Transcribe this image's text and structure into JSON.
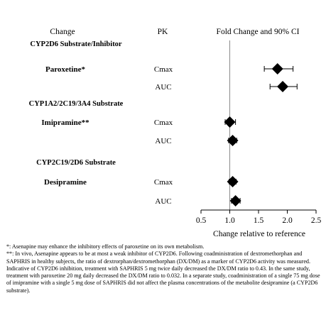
{
  "headers": {
    "change": "Change",
    "pk": "PK",
    "fold": "Fold Change and 90% CI"
  },
  "chart_data": {
    "type": "forest",
    "reference_line": 1.0,
    "xlim": [
      0.5,
      2.5
    ],
    "x_ticks": [
      0.5,
      1.0,
      1.5,
      2.0,
      2.5
    ],
    "x_tick_labels": [
      "0.5",
      "1.0",
      "1.5",
      "2.0",
      "2.5"
    ],
    "xlabel": "Change relative to reference",
    "groups": [
      {
        "title": "CYP2D6 Substrate/Inhibitor",
        "drug": "Paroxetine*",
        "rows": [
          {
            "pk": "Cmax",
            "estimate": 1.83,
            "ci_low": 1.6,
            "ci_high": 2.1
          },
          {
            "pk": "AUC",
            "estimate": 1.92,
            "ci_low": 1.7,
            "ci_high": 2.17
          }
        ]
      },
      {
        "title": "CYP1A2/2C19/3A4 Substrate",
        "drug": "Imipramine**",
        "rows": [
          {
            "pk": "Cmax",
            "estimate": 1.0,
            "ci_low": 0.92,
            "ci_high": 1.1
          },
          {
            "pk": "AUC",
            "estimate": 1.05,
            "ci_low": 0.98,
            "ci_high": 1.12
          }
        ]
      },
      {
        "title": "CYP2C19/2D6 Substrate",
        "drug": "Desipramine",
        "rows": [
          {
            "pk": "Cmax",
            "estimate": 1.05,
            "ci_low": 0.99,
            "ci_high": 1.11
          },
          {
            "pk": "AUC",
            "estimate": 1.1,
            "ci_low": 1.03,
            "ci_high": 1.18
          }
        ]
      }
    ]
  },
  "footnotes": [
    "*: Asenapine may enhance the inhibitory effects of paroxetine on its own metabolism.",
    "**: In vivo, Asenapine appears to be at most a weak inhibitor of CYP2D6. Following coadministration of dextromethorphan and SAPHRIS in healthy subjects, the ratio of dextrorphan/dextromethorphan (DX/DM) as a marker of CYP2D6 activity was measured. Indicative of CYP2D6 inhibition, treatment with SAPHRIS 5 mg twice daily decreased the DX/DM ratio to 0.43. In the same study, treatment with paroxetine 20 mg daily decreased the DX/DM ratio to 0.032. In a separate study, coadministration of a single 75 mg dose of imipramine with a single 5 mg dose of SAPHRIS did not affect the plasma concentrations of the metabolite desipramine (a CYP2D6 substrate)."
  ]
}
